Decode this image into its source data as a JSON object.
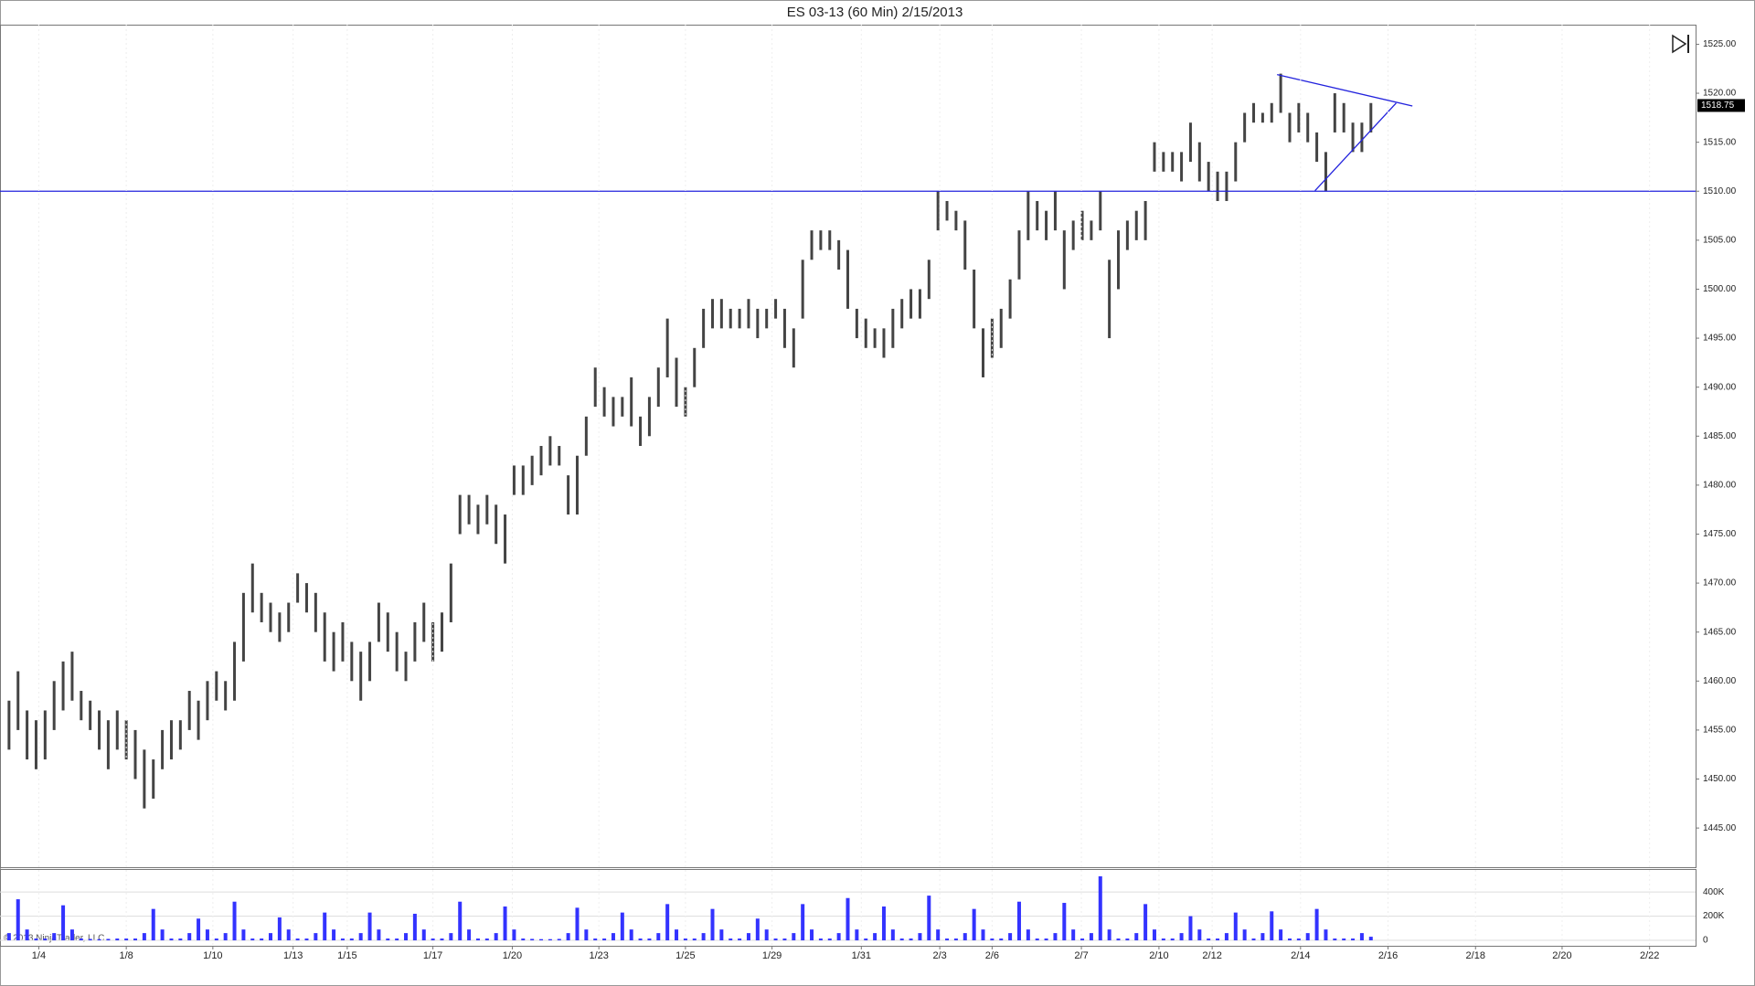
{
  "chart_data": [
    {
      "type": "range",
      "title": "ES 03-13 (60 Min)  2/15/2013",
      "color": "#444444",
      "xlim": [
        -1,
        187
      ],
      "ylim": [
        1441,
        1527
      ],
      "yticks": [
        {
          "value": 1445,
          "label": "1445.00"
        },
        {
          "value": 1450,
          "label": "1450.00"
        },
        {
          "value": 1455,
          "label": "1455.00"
        },
        {
          "value": 1460,
          "label": "1460.00"
        },
        {
          "value": 1465,
          "label": "1465.00"
        },
        {
          "value": 1470,
          "label": "1470.00"
        },
        {
          "value": 1475,
          "label": "1475.00"
        },
        {
          "value": 1480,
          "label": "1480.00"
        },
        {
          "value": 1485,
          "label": "1485.00"
        },
        {
          "value": 1490,
          "label": "1490.00"
        },
        {
          "value": 1495,
          "label": "1495.00"
        },
        {
          "value": 1500,
          "label": "1500.00"
        },
        {
          "value": 1505,
          "label": "1505.00"
        },
        {
          "value": 1510,
          "label": "1510.00"
        },
        {
          "value": 1515,
          "label": "1515.00"
        },
        {
          "value": 1520,
          "label": "1520.00"
        },
        {
          "value": 1525,
          "label": "1525.00"
        }
      ],
      "high": [
        1458,
        1461,
        1457,
        1456,
        1457,
        1460,
        1462,
        1463,
        1459,
        1458,
        1457,
        1456,
        1457,
        1456,
        1455,
        1453,
        1452,
        1455,
        1456,
        1456,
        1459,
        1458,
        1460,
        1461,
        1460,
        1464,
        1469,
        1472,
        1469,
        1468,
        1467,
        1468,
        1471,
        1470,
        1469,
        1467,
        1465,
        1466,
        1464,
        1463,
        1464,
        1468,
        1467,
        1465,
        1463,
        1466,
        1468,
        1466,
        1467,
        1472,
        1479,
        1479,
        1478,
        1479,
        1478,
        1477,
        1482,
        1482,
        1483,
        1484,
        1485,
        1484,
        1481,
        1483,
        1487,
        1492,
        1490,
        1489,
        1489,
        1491,
        1487,
        1489,
        1492,
        1497,
        1493,
        1490,
        1494,
        1498,
        1499,
        1499,
        1498,
        1498,
        1499,
        1498,
        1498,
        1499,
        1498,
        1496,
        1503,
        1506,
        1506,
        1506,
        1505,
        1504,
        1498,
        1497,
        1496,
        1496,
        1498,
        1499,
        1500,
        1500,
        1503,
        1510,
        1509,
        1508,
        1507,
        1502,
        1496,
        1497,
        1498,
        1501,
        1506,
        1510,
        1509,
        1508,
        1510,
        1506,
        1507,
        1508,
        1507,
        1510,
        1503,
        1506,
        1507,
        1508,
        1509,
        1515,
        1514,
        1514,
        1514,
        1517,
        1515,
        1513,
        1512,
        1512,
        1515,
        1518,
        1519,
        1518,
        1519,
        1522,
        1518,
        1519,
        1518,
        1516,
        1514,
        1520,
        1519,
        1517,
        1517,
        1519
      ],
      "low": [
        1453,
        1455,
        1452,
        1451,
        1452,
        1455,
        1457,
        1458,
        1456,
        1455,
        1453,
        1451,
        1453,
        1452,
        1450,
        1447,
        1448,
        1451,
        1452,
        1453,
        1455,
        1454,
        1456,
        1458,
        1457,
        1458,
        1462,
        1467,
        1466,
        1465,
        1464,
        1465,
        1468,
        1467,
        1465,
        1462,
        1461,
        1462,
        1460,
        1458,
        1460,
        1464,
        1463,
        1461,
        1460,
        1462,
        1464,
        1462,
        1463,
        1466,
        1475,
        1476,
        1475,
        1476,
        1474,
        1472,
        1479,
        1479,
        1480,
        1481,
        1482,
        1482,
        1477,
        1477,
        1483,
        1488,
        1487,
        1486,
        1487,
        1486,
        1484,
        1485,
        1488,
        1491,
        1488,
        1487,
        1490,
        1494,
        1496,
        1496,
        1496,
        1496,
        1496,
        1495,
        1496,
        1497,
        1494,
        1492,
        1497,
        1503,
        1504,
        1504,
        1502,
        1498,
        1495,
        1494,
        1494,
        1493,
        1494,
        1496,
        1497,
        1497,
        1499,
        1506,
        1507,
        1506,
        1502,
        1496,
        1491,
        1493,
        1494,
        1497,
        1501,
        1505,
        1506,
        1505,
        1506,
        1500,
        1504,
        1505,
        1505,
        1506,
        1495,
        1500,
        1504,
        1505,
        1505,
        1512,
        1512,
        1512,
        1511,
        1513,
        1511,
        1510,
        1509,
        1509,
        1511,
        1515,
        1517,
        1517,
        1517,
        1518,
        1515,
        1516,
        1515,
        1513,
        1510,
        1516,
        1516,
        1514,
        1514,
        1516
      ],
      "last_price": 1518.75,
      "last_price_color": "#000000",
      "hlines": [
        {
          "y": 1510,
          "color": "#2222dd"
        }
      ],
      "lines": [
        {
          "color": "#2222dd",
          "x": [
            140.6,
            155.6
          ],
          "y": [
            1521.9,
            1518.7
          ]
        },
        {
          "color": "#2222dd",
          "x": [
            144.8,
            153.8
          ],
          "y": [
            1510.05,
            1519.0
          ]
        }
      ]
    },
    {
      "type": "bar",
      "color": "#3333ff",
      "annotation": "© 2013 NinjaTrader, LLC",
      "xlim": [
        -1,
        187
      ],
      "ylim": [
        -45000,
        590000
      ],
      "yticks": [
        0,
        {
          "value": 200000,
          "label": "200K"
        },
        {
          "value": 400000,
          "label": "400K"
        }
      ],
      "xticks": [
        {
          "value": 3.3,
          "label": "1/4"
        },
        {
          "value": 13,
          "label": "1/8"
        },
        {
          "value": 22.6,
          "label": "1/10"
        },
        {
          "value": 31.5,
          "label": "1/13"
        },
        {
          "value": 37.5,
          "label": "1/15"
        },
        {
          "value": 47,
          "label": "1/17"
        },
        {
          "value": 55.8,
          "label": "1/20"
        },
        {
          "value": 65.4,
          "label": "1/23"
        },
        {
          "value": 75,
          "label": "1/25"
        },
        {
          "value": 84.6,
          "label": "1/29"
        },
        {
          "value": 94.5,
          "label": "1/31"
        },
        {
          "value": 103.2,
          "label": "2/3"
        },
        {
          "value": 109,
          "label": "2/6"
        },
        {
          "value": 118.9,
          "label": "2/7"
        },
        {
          "value": 127.5,
          "label": "2/10"
        },
        {
          "value": 133.4,
          "label": "2/12"
        },
        {
          "value": 143.2,
          "label": "2/14"
        },
        {
          "value": 152.9,
          "label": "2/16"
        },
        {
          "value": 162.6,
          "label": "2/18"
        },
        {
          "value": 172.2,
          "label": "2/20"
        },
        {
          "value": 181.9,
          "label": "2/22"
        }
      ],
      "values": [
        60000,
        340000,
        90000,
        15000,
        15000,
        60000,
        290000,
        90000,
        15000,
        12000,
        10000,
        12000,
        15000,
        15000,
        15000,
        60000,
        260000,
        90000,
        15000,
        15000,
        60000,
        180000,
        90000,
        15000,
        60000,
        320000,
        90000,
        15000,
        15000,
        60000,
        190000,
        90000,
        15000,
        15000,
        60000,
        230000,
        90000,
        15000,
        15000,
        60000,
        230000,
        90000,
        15000,
        15000,
        60000,
        220000,
        90000,
        15000,
        15000,
        60000,
        320000,
        90000,
        15000,
        15000,
        60000,
        280000,
        90000,
        15000,
        12000,
        10000,
        10000,
        12000,
        60000,
        270000,
        90000,
        15000,
        15000,
        60000,
        230000,
        90000,
        15000,
        15000,
        60000,
        300000,
        90000,
        15000,
        15000,
        60000,
        260000,
        90000,
        15000,
        15000,
        60000,
        180000,
        90000,
        15000,
        15000,
        60000,
        300000,
        90000,
        15000,
        15000,
        60000,
        350000,
        90000,
        15000,
        60000,
        280000,
        90000,
        15000,
        15000,
        60000,
        370000,
        90000,
        15000,
        15000,
        60000,
        260000,
        90000,
        15000,
        15000,
        60000,
        320000,
        90000,
        15000,
        15000,
        60000,
        310000,
        90000,
        15000,
        60000,
        530000,
        90000,
        15000,
        15000,
        60000,
        300000,
        90000,
        15000,
        15000,
        60000,
        200000,
        90000,
        15000,
        15000,
        60000,
        230000,
        90000,
        15000,
        60000,
        240000,
        90000,
        15000,
        15000,
        60000,
        260000,
        90000,
        15000,
        15000,
        15000,
        60000,
        30000
      ]
    }
  ]
}
